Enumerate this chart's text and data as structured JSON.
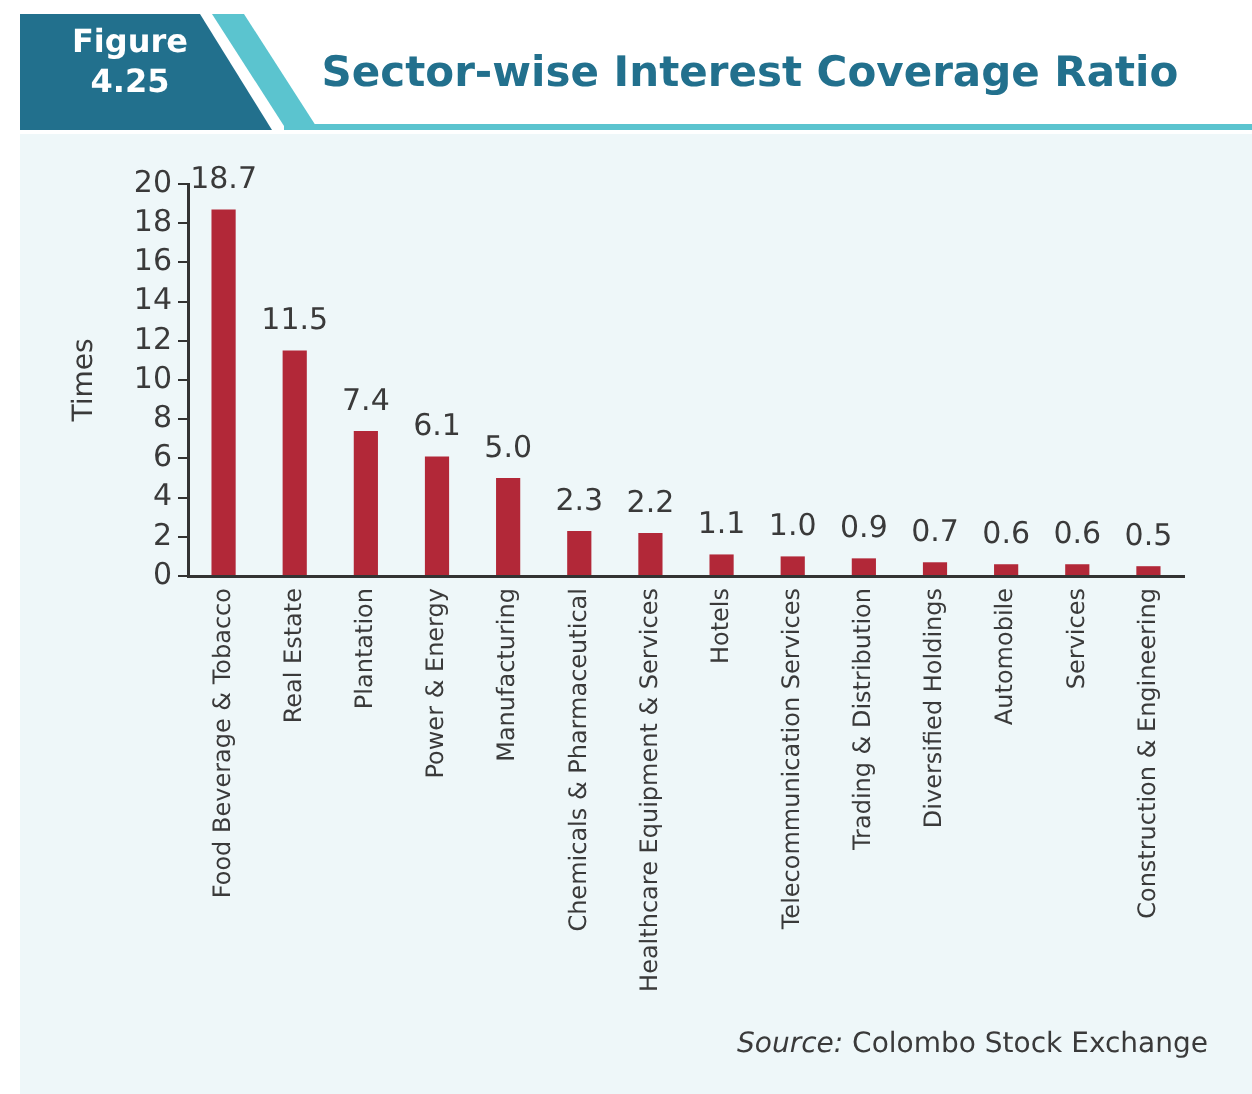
{
  "chart_data": {
    "type": "bar",
    "title": "Sector-wise Interest Coverage Ratio",
    "ylabel": "Times",
    "categories": [
      "Food Beverage & Tobacco",
      "Real Estate",
      "Plantation",
      "Power & Energy",
      "Manufacturing",
      "Chemicals & Pharmaceutical",
      "Healthcare Equipment & Services",
      "Hotels",
      "Telecommunication Services",
      "Trading & Distribution",
      "Diversified Holdings",
      "Automobile",
      "Services",
      "Construction & Engineering"
    ],
    "values": [
      18.7,
      11.5,
      7.4,
      6.1,
      5.0,
      2.3,
      2.2,
      1.1,
      1.0,
      0.9,
      0.7,
      0.6,
      0.6,
      0.5
    ],
    "value_labels": [
      "18.7",
      "11.5",
      "7.4",
      "6.1",
      "5.0",
      "2.3",
      "2.2",
      "1.1",
      "1.0",
      "0.9",
      "0.7",
      "0.6",
      "0.6",
      "0.5"
    ],
    "color": "#b22838",
    "ylim": [
      0,
      20
    ],
    "yticks": [
      0,
      2,
      4,
      6,
      8,
      10,
      12,
      14,
      16,
      18,
      20
    ],
    "grid": false,
    "legend": false,
    "annotations": [
      "Figure 4.25",
      "Source: Colombo Stock Exchange"
    ]
  }
}
